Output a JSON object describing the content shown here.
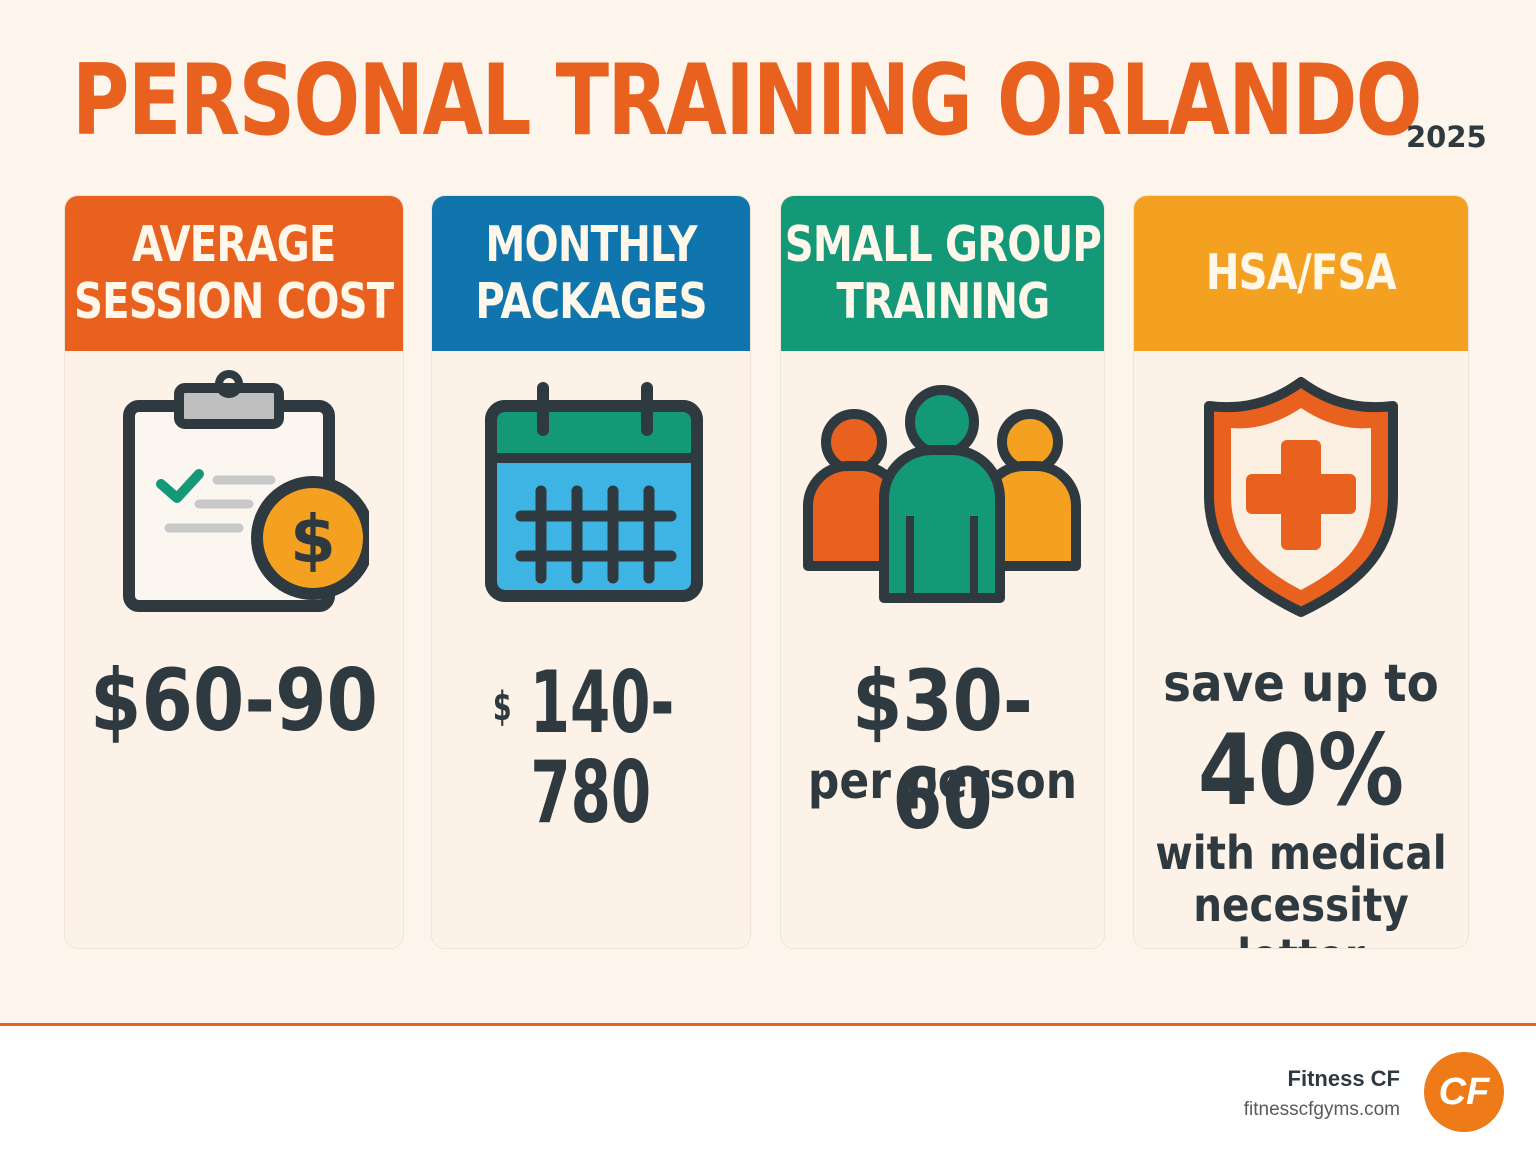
{
  "title": "PERSONAL TRAINING ORLANDO",
  "year": "2025",
  "colors": {
    "orange": "#e8611f",
    "blue": "#1075ad",
    "green": "#139878",
    "amber": "#f4a020",
    "text": "#2f3a40"
  },
  "cards": [
    {
      "heading_line1": "AVERAGE",
      "heading_line2": "SESSION COST",
      "icon": "clipboard-dollar-icon",
      "value": "$60-90"
    },
    {
      "heading_line1": "MONTHLY",
      "heading_line2": "PACKAGES",
      "icon": "calendar-icon",
      "value_currency": "$",
      "value_line1": "140-",
      "value_line2": "780"
    },
    {
      "heading_line1": "SMALL GROUP",
      "heading_line2": "TRAINING",
      "icon": "group-people-icon",
      "value": "$30-60",
      "sub": "per person"
    },
    {
      "heading_line1": "HSA/FSA",
      "icon": "shield-cross-icon",
      "pre": "save up to",
      "value": "40%",
      "sub_line1": "with medical",
      "sub_line2": "necessity letter"
    }
  ],
  "footer": {
    "brand": "Fitness CF",
    "url": "fitnesscfgyms.com",
    "logo_text": "CF"
  }
}
